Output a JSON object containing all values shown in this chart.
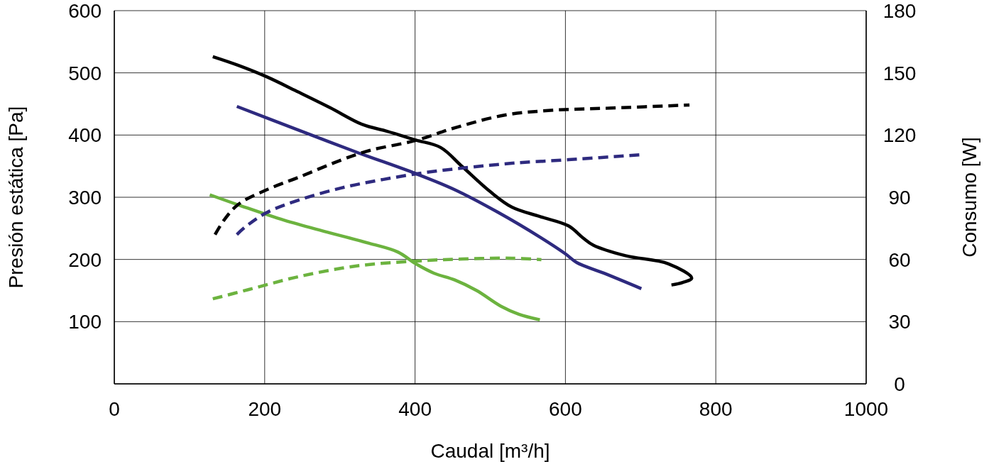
{
  "chart_data": {
    "type": "line",
    "xlabel": "Caudal [m³/h]",
    "ylabel": "Presión estática [Pa]",
    "y2label": "Consumo [W]",
    "xlim": [
      0,
      1000
    ],
    "xticks": [
      0,
      200,
      400,
      600,
      800,
      1000
    ],
    "ylim": [
      0,
      600
    ],
    "yticks": [
      {
        "value": 0,
        "label": null
      },
      100,
      200,
      300,
      400,
      500,
      600
    ],
    "y2lim": [
      0,
      180
    ],
    "y2ticks": [
      0,
      30,
      60,
      90,
      120,
      150,
      180
    ],
    "grid": true,
    "marker": "none",
    "series": [
      {
        "color": "#000000",
        "line_style": "solid",
        "x": [
          131,
          165,
          202,
          245,
          287,
          330,
          363,
          401,
          434,
          463,
          500,
          529,
          566,
          604,
          623,
          637,
          680,
          737,
          768,
          756,
          741
        ],
        "values": [
          526,
          512,
          494,
          469,
          444,
          417,
          406,
          392,
          380,
          349,
          309,
          284,
          269,
          254,
          235,
          223,
          206,
          193,
          170,
          163,
          159
        ]
      },
      {
        "color": "#2e2a7f",
        "line_style": "solid",
        "x": [
          163,
          245,
          321,
          401,
          453,
          510,
          566,
          600,
          615,
          651,
          701
        ],
        "values": [
          446,
          408,
          373,
          338,
          312,
          276,
          236,
          209,
          195,
          178,
          153
        ]
      },
      {
        "color": "#6cb33f",
        "line_style": "solid",
        "x": [
          127,
          169,
          226,
          283,
          339,
          377,
          401,
          425,
          453,
          482,
          514,
          538,
          566
        ],
        "values": [
          304,
          286,
          263,
          244,
          226,
          212,
          193,
          178,
          167,
          150,
          125,
          112,
          103
        ]
      },
      {
        "color": "#000000",
        "line_style": "dashed",
        "axis": "y2",
        "x": [
          134,
          146,
          165,
          202,
          245,
          302,
          339,
          401,
          453,
          519,
          585,
          661,
          765
        ],
        "values": [
          72,
          79,
          86.6,
          93.5,
          99.6,
          108,
          112.5,
          117.4,
          123.5,
          129.6,
          132,
          133,
          134.5
        ]
      },
      {
        "color": "#2e2a7f",
        "line_style": "dashed",
        "axis": "y2",
        "x": [
          163,
          174,
          202,
          245,
          302,
          358,
          415,
          472,
          529,
          604,
          701
        ],
        "values": [
          72,
          75.6,
          82.5,
          88.6,
          94.5,
          98.6,
          102,
          104.4,
          106.4,
          108.1,
          110.5
        ]
      },
      {
        "color": "#6cb33f",
        "line_style": "dashed",
        "axis": "y2",
        "x": [
          131,
          179,
          245,
          321,
          401,
          463,
          529,
          568
        ],
        "values": [
          41,
          45.5,
          51.7,
          56.8,
          59.2,
          60.2,
          60.6,
          59.9
        ]
      }
    ]
  }
}
